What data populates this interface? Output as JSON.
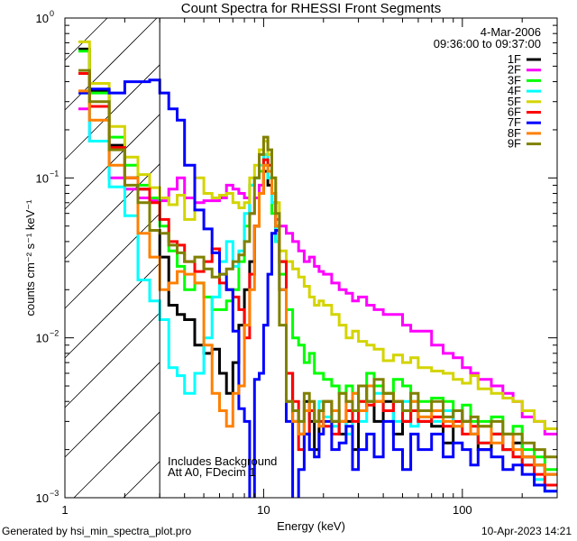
{
  "chart_data": {
    "type": "line",
    "style": "step",
    "title": "Count Spectra for RHESSI Front Segments",
    "xlabel": "Energy (keV)",
    "ylabel": "counts cm⁻² s⁻¹ keV⁻¹",
    "xscale": "log",
    "yscale": "log",
    "xlim": [
      1,
      300
    ],
    "ylim": [
      0.001,
      1
    ],
    "xticks": [
      {
        "value": 1,
        "label": "1"
      },
      {
        "value": 10,
        "label": "10"
      },
      {
        "value": 100,
        "label": "100"
      }
    ],
    "yticks": [
      {
        "value": 1,
        "base": "10",
        "exp": "0"
      },
      {
        "value": 0.1,
        "base": "10",
        "exp": "−1"
      },
      {
        "value": 0.01,
        "base": "10",
        "exp": "−2"
      },
      {
        "value": 0.001,
        "base": "10",
        "exp": "−3"
      }
    ],
    "shaded_region_below_keV": 3,
    "date": "4-Mar-2006",
    "time_range": "09:36:00 to 09:37:00",
    "annotations": [
      "Includes Background",
      "Att A0, FDecim 1"
    ],
    "legend_position": "top-right",
    "bin_edges_keV": [
      1.17,
      1.33,
      1.67,
      2,
      2.33,
      2.67,
      3,
      3.33,
      3.67,
      4,
      4.5,
      5,
      5.5,
      6,
      6.5,
      7,
      7.5,
      8,
      8.5,
      9,
      9.5,
      10,
      10.5,
      11,
      11.5,
      12,
      13,
      14,
      15,
      16,
      17,
      18,
      19,
      20,
      22,
      24,
      26,
      28,
      30,
      33,
      36,
      40,
      45,
      50,
      55,
      60,
      70,
      80,
      90,
      100,
      110,
      120,
      140,
      160,
      180,
      200,
      230,
      260,
      300
    ],
    "series": [
      {
        "name": "1F",
        "color": "#000000",
        "values": [
          0.64,
          0.35,
          0.16,
          0.1,
          0.085,
          0.047,
          0.032,
          0.016,
          0.014,
          0.013,
          0.009,
          0.008,
          0.0085,
          0.006,
          0.0045,
          0.007,
          0.012,
          0.02,
          0.03,
          0.05,
          0.08,
          0.11,
          0.09,
          0.07,
          0.04,
          0.03,
          0.006,
          0.003,
          0.0025,
          0.004,
          0.003,
          0.002,
          0.0035,
          0.004,
          0.003,
          0.0025,
          0.003,
          0.002,
          0.0035,
          0.004,
          0.003,
          0.004,
          0.0025,
          0.003,
          0.0035,
          0.003,
          0.0028,
          0.0022,
          0.0035,
          0.003,
          0.0025,
          0.002,
          0.0025,
          0.002,
          0.0022,
          0.0018,
          0.0016,
          0.0014
        ]
      },
      {
        "name": "2F",
        "color": "#ff00ff",
        "values": [
          0.27,
          0.17,
          0.1,
          0.085,
          0.075,
          0.072,
          0.072,
          0.085,
          0.1,
          0.075,
          0.07,
          0.072,
          0.072,
          0.075,
          0.09,
          0.085,
          0.08,
          0.075,
          0.06,
          0.075,
          0.09,
          0.12,
          0.1,
          0.08,
          0.055,
          0.05,
          0.045,
          0.04,
          0.035,
          0.03,
          0.032,
          0.028,
          0.026,
          0.025,
          0.022,
          0.02,
          0.019,
          0.017,
          0.018,
          0.016,
          0.015,
          0.014,
          0.014,
          0.012,
          0.011,
          0.011,
          0.009,
          0.008,
          0.0075,
          0.0065,
          0.006,
          0.0055,
          0.005,
          0.0045,
          0.004,
          0.0032,
          0.003,
          0.0025
        ]
      },
      {
        "name": "3F",
        "color": "#00ff00",
        "values": [
          0.62,
          0.34,
          0.18,
          0.12,
          0.09,
          0.075,
          0.05,
          0.035,
          0.028,
          0.02,
          0.022,
          0.018,
          0.015,
          0.015,
          0.017,
          0.02,
          0.03,
          0.05,
          0.09,
          0.1,
          0.11,
          0.14,
          0.1,
          0.06,
          0.04,
          0.025,
          0.015,
          0.01,
          0.009,
          0.007,
          0.008,
          0.006,
          0.006,
          0.0055,
          0.005,
          0.0045,
          0.005,
          0.0045,
          0.004,
          0.006,
          0.005,
          0.0045,
          0.0055,
          0.005,
          0.004,
          0.004,
          0.0042,
          0.004,
          0.0035,
          0.0038,
          0.003,
          0.003,
          0.0032,
          0.0025,
          0.0028,
          0.002,
          0.0018,
          0.0015
        ]
      },
      {
        "name": "4F",
        "color": "#00ffff",
        "values": [
          0.34,
          0.17,
          0.088,
          0.058,
          0.023,
          0.017,
          0.013,
          0.0065,
          0.0058,
          0.0045,
          0.006,
          0.01,
          0.018,
          0.03,
          0.04,
          0.028,
          0.035,
          0.06,
          0.09,
          0.1,
          0.12,
          0.14,
          0.1,
          0.07,
          0.04,
          0.02,
          0.004,
          0.0035,
          0.003,
          0.0025,
          0.0035,
          0.003,
          0.004,
          0.0032,
          0.0028,
          0.003,
          0.0025,
          0.0035,
          0.003,
          0.004,
          0.0045,
          0.0035,
          0.003,
          0.004,
          0.0028,
          0.0032,
          0.003,
          0.0035,
          0.0028,
          0.003,
          0.0025,
          0.0022,
          0.0025,
          0.002,
          0.0018,
          0.0016,
          0.0013,
          0.0011
        ]
      },
      {
        "name": "5F",
        "color": "#d4d400",
        "values": [
          0.71,
          0.39,
          0.21,
          0.135,
          0.105,
          0.087,
          0.075,
          0.068,
          0.078,
          0.055,
          0.1,
          0.08,
          0.075,
          0.078,
          0.08,
          0.07,
          0.065,
          0.07,
          0.1,
          0.12,
          0.15,
          0.17,
          0.14,
          0.1,
          0.07,
          0.035,
          0.03,
          0.027,
          0.024,
          0.021,
          0.018,
          0.016,
          0.017,
          0.016,
          0.014,
          0.012,
          0.01,
          0.011,
          0.0095,
          0.009,
          0.0085,
          0.0072,
          0.0078,
          0.007,
          0.0075,
          0.0065,
          0.0062,
          0.006,
          0.0055,
          0.0052,
          0.0058,
          0.0048,
          0.0045,
          0.0042,
          0.004,
          0.0035,
          0.003,
          0.0027
        ]
      },
      {
        "name": "6F",
        "color": "#ff0000",
        "values": [
          0.45,
          0.28,
          0.155,
          0.1,
          0.085,
          0.07,
          0.055,
          0.04,
          0.038,
          0.03,
          0.026,
          0.03,
          0.036,
          0.022,
          0.02,
          0.018,
          0.015,
          0.01,
          0.025,
          0.05,
          0.08,
          0.13,
          0.12,
          0.08,
          0.05,
          0.03,
          0.006,
          0.004,
          0.002,
          0.0025,
          0.0035,
          0.003,
          0.003,
          0.0028,
          0.0025,
          0.003,
          0.0035,
          0.003,
          0.004,
          0.0038,
          0.004,
          0.0035,
          0.004,
          0.003,
          0.0035,
          0.003,
          0.0032,
          0.0028,
          0.003,
          0.0025,
          0.0028,
          0.0022,
          0.0025,
          0.002,
          0.0018,
          0.0016,
          0.0014,
          0.0012
        ]
      },
      {
        "name": "7F",
        "color": "#0000ff",
        "values": [
          0.34,
          0.36,
          0.34,
          0.4,
          0.4,
          0.41,
          0.34,
          0.27,
          0.23,
          0.12,
          0.063,
          0.048,
          0.034,
          0.025,
          0.02,
          0.011,
          0.0036,
          0.003,
          0.0008,
          0.0055,
          0.006,
          0.012,
          0.025,
          0.045,
          0.047,
          0.02,
          0.003,
          0.0008,
          0.0015,
          0.0025,
          0.002,
          0.0018,
          0.0025,
          0.003,
          0.002,
          0.0022,
          0.0028,
          0.0015,
          0.002,
          0.0025,
          0.0018,
          0.003,
          0.002,
          0.0015,
          0.0025,
          0.002,
          0.0025,
          0.0018,
          0.0022,
          0.002,
          0.0016,
          0.002,
          0.0018,
          0.0015,
          0.0016,
          0.0014,
          0.0012,
          0.0011
        ]
      },
      {
        "name": "8F",
        "color": "#ff8000",
        "values": [
          0.35,
          0.23,
          0.12,
          0.1,
          0.045,
          0.032,
          0.02,
          0.022,
          0.026,
          0.025,
          0.022,
          0.009,
          0.0045,
          0.0035,
          0.0028,
          0.0045,
          0.005,
          0.012,
          0.02,
          0.05,
          0.08,
          0.12,
          0.11,
          0.08,
          0.05,
          0.02,
          0.004,
          0.003,
          0.0025,
          0.0035,
          0.004,
          0.003,
          0.0028,
          0.004,
          0.0035,
          0.003,
          0.004,
          0.0045,
          0.0035,
          0.005,
          0.004,
          0.0045,
          0.004,
          0.0035,
          0.004,
          0.0032,
          0.0035,
          0.003,
          0.0028,
          0.003,
          0.0025,
          0.0028,
          0.0022,
          0.0025,
          0.002,
          0.0018,
          0.0016,
          0.0014
        ]
      },
      {
        "name": "9F",
        "color": "#808000",
        "values": [
          0.47,
          0.3,
          0.15,
          0.09,
          0.07,
          0.047,
          0.045,
          0.038,
          0.034,
          0.03,
          0.032,
          0.027,
          0.024,
          0.025,
          0.027,
          0.03,
          0.033,
          0.04,
          0.06,
          0.1,
          0.14,
          0.18,
          0.15,
          0.1,
          0.06,
          0.012,
          0.004,
          0.0035,
          0.003,
          0.0045,
          0.004,
          0.003,
          0.0035,
          0.004,
          0.003,
          0.0045,
          0.004,
          0.0035,
          0.005,
          0.004,
          0.0055,
          0.0045,
          0.004,
          0.0035,
          0.0045,
          0.0035,
          0.004,
          0.0032,
          0.0035,
          0.003,
          0.0032,
          0.0028,
          0.003,
          0.0025,
          0.0025,
          0.0022,
          0.002,
          0.0018
        ]
      }
    ]
  },
  "footer": {
    "generated_by": "Generated by hsi_min_spectra_plot.pro",
    "timestamp": "10-Apr-2023 14:21"
  }
}
